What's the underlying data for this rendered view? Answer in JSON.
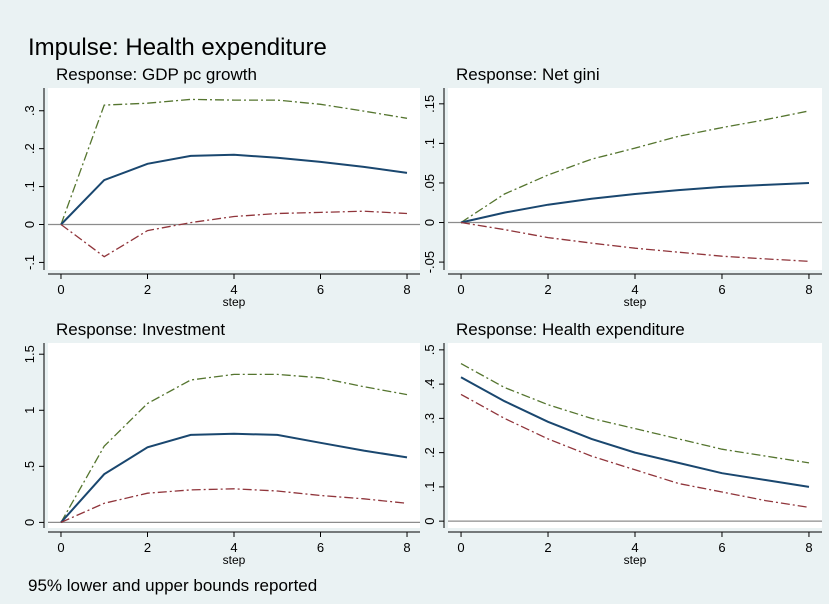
{
  "title": "Impulse: Health expenditure",
  "note": "95% lower and upper bounds reported",
  "chart_data": [
    {
      "type": "line",
      "title": "Response: GDP pc growth",
      "x_label": "step",
      "x": [
        0,
        1,
        2,
        3,
        4,
        5,
        6,
        7,
        8
      ],
      "series": [
        {
          "color": "#55752f",
          "line_style": "dashdot",
          "values": [
            0,
            0.315,
            0.32,
            0.33,
            0.328,
            0.328,
            0.317,
            0.299,
            0.28
          ]
        },
        {
          "color": "#1a476f",
          "line_style": "solid",
          "values": [
            0,
            0.117,
            0.16,
            0.181,
            0.184,
            0.176,
            0.165,
            0.152,
            0.136
          ]
        },
        {
          "color": "#90353b",
          "line_style": "dashdot",
          "values": [
            0,
            -0.085,
            -0.016,
            0.005,
            0.021,
            0.029,
            0.032,
            0.035,
            0.029
          ]
        }
      ],
      "xlim": [
        -0.3,
        8.3
      ],
      "ylim": [
        -0.12,
        0.36
      ],
      "xticks": [
        0,
        2,
        4,
        6,
        8
      ],
      "yticks": [
        {
          "value": -0.1,
          "label": "-.1"
        },
        0,
        {
          "value": 0.1,
          "label": ".1"
        },
        {
          "value": 0.2,
          "label": ".2"
        },
        {
          "value": 0.3,
          "label": ".3"
        }
      ],
      "reference_line": 0
    },
    {
      "type": "line",
      "title": "Response: Net gini",
      "x_label": "step",
      "x": [
        0,
        1,
        2,
        3,
        4,
        5,
        6,
        7,
        8
      ],
      "series": [
        {
          "color": "#55752f",
          "line_style": "dashdot",
          "values": [
            0,
            0.036,
            0.06,
            0.08,
            0.094,
            0.109,
            0.12,
            0.13,
            0.141
          ]
        },
        {
          "color": "#1a476f",
          "line_style": "solid",
          "values": [
            0,
            0.0125,
            0.0225,
            0.03,
            0.036,
            0.041,
            0.045,
            0.0475,
            0.05
          ]
        },
        {
          "color": "#90353b",
          "line_style": "dashdot",
          "values": [
            0,
            -0.009,
            -0.019,
            -0.026,
            -0.0325,
            -0.0375,
            -0.0425,
            -0.046,
            -0.049
          ]
        }
      ],
      "xlim": [
        -0.3,
        8.3
      ],
      "ylim": [
        -0.06,
        0.17
      ],
      "xticks": [
        0,
        2,
        4,
        6,
        8
      ],
      "yticks": [
        {
          "value": -0.05,
          "label": "-.05"
        },
        0,
        {
          "value": 0.05,
          "label": ".05"
        },
        {
          "value": 0.1,
          "label": ".1"
        },
        {
          "value": 0.15,
          "label": ".15"
        }
      ],
      "reference_line": 0
    },
    {
      "type": "line",
      "title": "Response: Investment",
      "x_label": "step",
      "x": [
        0,
        1,
        2,
        3,
        4,
        5,
        6,
        7,
        8
      ],
      "series": [
        {
          "color": "#55752f",
          "line_style": "dashdot",
          "values": [
            0,
            0.68,
            1.06,
            1.27,
            1.32,
            1.32,
            1.29,
            1.21,
            1.14
          ]
        },
        {
          "color": "#1a476f",
          "line_style": "solid",
          "values": [
            0,
            0.43,
            0.67,
            0.78,
            0.79,
            0.78,
            0.71,
            0.64,
            0.58
          ]
        },
        {
          "color": "#90353b",
          "line_style": "dashdot",
          "values": [
            0,
            0.17,
            0.26,
            0.29,
            0.3,
            0.28,
            0.24,
            0.21,
            0.17
          ]
        }
      ],
      "xlim": [
        -0.3,
        8.3
      ],
      "ylim": [
        -0.05,
        1.6
      ],
      "xticks": [
        0,
        2,
        4,
        6,
        8
      ],
      "yticks": [
        0,
        {
          "value": 0.5,
          "label": ".5"
        },
        1,
        1.5
      ],
      "reference_line": 0
    },
    {
      "type": "line",
      "title": "Response: Health expenditure",
      "x_label": "step",
      "x": [
        0,
        1,
        2,
        3,
        4,
        5,
        6,
        7,
        8
      ],
      "series": [
        {
          "color": "#55752f",
          "line_style": "dashdot",
          "values": [
            0.46,
            0.39,
            0.34,
            0.3,
            0.27,
            0.24,
            0.21,
            0.19,
            0.17
          ]
        },
        {
          "color": "#1a476f",
          "line_style": "solid",
          "values": [
            0.42,
            0.35,
            0.29,
            0.24,
            0.2,
            0.17,
            0.14,
            0.12,
            0.1
          ]
        },
        {
          "color": "#90353b",
          "line_style": "dashdot",
          "values": [
            0.37,
            0.3,
            0.24,
            0.19,
            0.15,
            0.11,
            0.085,
            0.06,
            0.04
          ]
        }
      ],
      "xlim": [
        -0.3,
        8.3
      ],
      "ylim": [
        -0.02,
        0.52
      ],
      "xticks": [
        0,
        2,
        4,
        6,
        8
      ],
      "yticks": [
        0,
        {
          "value": 0.1,
          "label": ".1"
        },
        {
          "value": 0.2,
          "label": ".2"
        },
        {
          "value": 0.3,
          "label": ".3"
        },
        {
          "value": 0.4,
          "label": ".4"
        },
        {
          "value": 0.5,
          "label": ".5"
        }
      ],
      "reference_line": 0
    }
  ]
}
